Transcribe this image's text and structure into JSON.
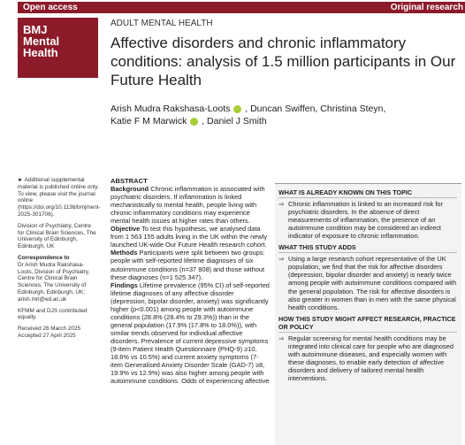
{
  "header": {
    "left": "Open access",
    "right": "Original research"
  },
  "logo": [
    "BMJ",
    "Mental",
    "Health"
  ],
  "section": "ADULT MENTAL HEALTH",
  "title": "Affective disorders and chronic inflammatory conditions: analysis of 1.5 million participants in Our Future Health",
  "authors": {
    "a1": "Arish Mudra Rakshasa-Loots",
    "a2": ", Duncan Swiffen, Christina Steyn,",
    "a3": "Katie F M Marwick",
    "a4": ", Daniel J Smith"
  },
  "sidebar": {
    "supp": "► Additional supplemental material is published online only. To view, please visit the journal online (https://doi.org/10.1136/bmjment-2025-301706).",
    "affil": "Division of Psychiatry, Centre for Clinical Brain Sciences, The University of Edinburgh, Edinburgh, UK",
    "corr_head": "Correspondence to",
    "corr": "Dr Arish Mudra Rakshasa-Loots, Division of Psychiatry, Centre for Clinical Brain Sciences, The University of Edinburgh, Edinburgh, UK; arish.mrl@ed.ac.uk",
    "equal": "KFMM and DJS contributed equally.",
    "received": "Received 26 March 2025",
    "accepted": "Accepted 27 April 2025"
  },
  "abstract": {
    "heading": "ABSTRACT",
    "bg_label": "Background",
    "bg": "Chronic inflammation is associated with psychiatric disorders. If inflammation is linked mechanistically to mental health, people living with chronic inflammatory conditions may experience mental health issues at higher rates than others.",
    "obj_label": "Objective",
    "obj": "To test this hypothesis, we analysed data from 1 563 155 adults living in the UK within the newly launched UK-wide Our Future Health research cohort.",
    "meth_label": "Methods",
    "meth": "Participants were split between two groups: people with self-reported lifetime diagnoses of six autoimmune conditions (n=37 808) and those without these diagnoses (n=1 525 347).",
    "find_label": "Findings",
    "find": "Lifetime prevalence (95% CI) of self-reported lifetime diagnoses of any affective disorder (depression, bipolar disorder, anxiety) was significantly higher (p<0.001) among people with autoimmune conditions (28.8% (28.4% to 29.3%)) than in the general population (17.9% (17.8% to 18.0%)), with similar trends observed for individual affective disorders. Prevalence of current depressive symptoms (9-item Patient Health Questionnaire (PHQ-9) ≥10, 18.6% vs 10.5%) and current anxiety symptoms (7-item Generalised Anxiety Disorder Scale (GAD-7) ≥8, 19.9% vs 12.9%) was also higher among people with autoimmune conditions. Odds of experiencing affective"
  },
  "known": {
    "heading1": "WHAT IS ALREADY KNOWN ON THIS TOPIC",
    "item1": "Chronic inflammation is linked to an increased risk for psychiatric disorders. In the absence of direct measurements of inflammation, the presence of an autoimmune condition may be considered an indirect indicator of exposure to chronic inflammation.",
    "heading2": "WHAT THIS STUDY ADDS",
    "item2": "Using a large research cohort representative of the UK population, we find that the risk for affective disorders (depression, bipolar disorder and anxiety) is nearly twice among people with autoimmune conditions compared with the general population. The risk for affective disorders is also greater in women than in men with the same physical health conditions.",
    "heading3": "HOW THIS STUDY MIGHT AFFECT RESEARCH, PRACTICE OR POLICY",
    "item3": "Regular screening for mental health conditions may be integrated into clinical care for people who are diagnosed with autoimmune diseases, and especially women with these diagnoses, to enable early detection of affective disorders and delivery of tailored mental health interventions.",
    "arrow": "⇒"
  }
}
